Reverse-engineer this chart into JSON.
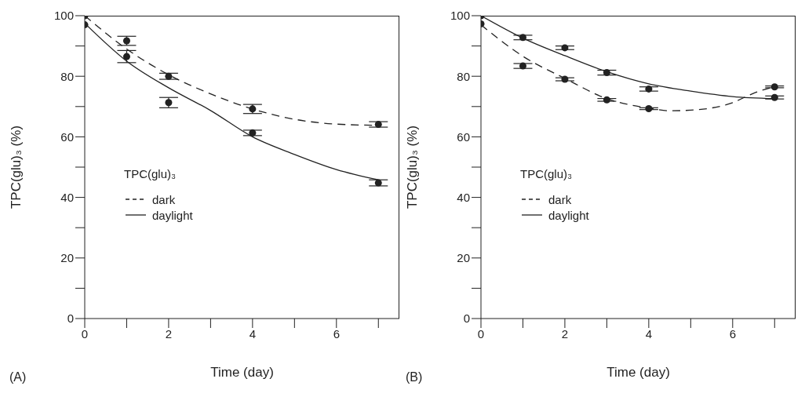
{
  "chart_data": [
    {
      "type": "line",
      "xlabel": "Time (day)",
      "ylabel": "TPC(glu)₃ (%)",
      "legend_title": "TPC(glu)₃",
      "legend": "left",
      "grid": false,
      "annotations": [
        "(A)"
      ],
      "xlim": [
        0,
        7.5
      ],
      "xticks": [
        0,
        {
          "value": 1,
          "label": null
        },
        2,
        {
          "value": 3,
          "label": null
        },
        4,
        {
          "value": 5,
          "label": null
        },
        6,
        {
          "value": 7,
          "label": null
        }
      ],
      "ylim": [
        0,
        100
      ],
      "yticks": [
        0,
        {
          "value": 10,
          "label": null
        },
        20,
        {
          "value": 30,
          "label": null
        },
        40,
        {
          "value": 50,
          "label": null
        },
        60,
        {
          "value": 70,
          "label": null
        },
        80,
        {
          "value": 90,
          "label": null
        },
        100
      ],
      "series": [
        {
          "name": "dark",
          "line_style": "dashed",
          "color": "#222222",
          "x": [
            0,
            1,
            2,
            3,
            4,
            5,
            6,
            7
          ],
          "values": [
            100,
            89,
            80.5,
            74.2,
            69.2,
            65.8,
            64.2,
            63.8
          ]
        },
        {
          "name": "daylight",
          "line_style": "solid",
          "color": "#222222",
          "x": [
            0,
            1,
            2,
            3,
            4,
            5,
            6,
            7
          ],
          "values": [
            97.5,
            85,
            76.2,
            68.7,
            60,
            54.2,
            49.2,
            45.8
          ]
        },
        {
          "type": "scatter",
          "marker": "circle",
          "color": "#222222",
          "x": [
            0,
            1,
            2,
            4,
            7
          ],
          "values": [
            100,
            91.7,
            80,
            69.2,
            64.1
          ],
          "errors": [
            null,
            1.5,
            1,
            1.5,
            0.9
          ]
        },
        {
          "type": "scatter",
          "marker": "circle",
          "color": "#222222",
          "x": [
            0,
            1,
            2,
            4,
            7
          ],
          "values": [
            97,
            86.5,
            71.3,
            61.3,
            44.8
          ],
          "errors": [
            null,
            2,
            1.7,
            0.9,
            1
          ]
        }
      ]
    },
    {
      "type": "line",
      "xlabel": "Time (day)",
      "ylabel": "TPC(glu)₃ (%)",
      "legend_title": "TPC(glu)₃",
      "legend": "left",
      "grid": false,
      "annotations": [
        "(B)"
      ],
      "xlim": [
        0,
        7.5
      ],
      "xticks": [
        0,
        {
          "value": 1,
          "label": null
        },
        2,
        {
          "value": 3,
          "label": null
        },
        4,
        {
          "value": 5,
          "label": null
        },
        6,
        {
          "value": 7,
          "label": null
        }
      ],
      "ylim": [
        0,
        100
      ],
      "yticks": [
        0,
        {
          "value": 10,
          "label": null
        },
        20,
        {
          "value": 30,
          "label": null
        },
        40,
        {
          "value": 50,
          "label": null
        },
        60,
        {
          "value": 70,
          "label": null
        },
        80,
        {
          "value": 90,
          "label": null
        },
        100
      ],
      "series": [
        {
          "name": "dark",
          "line_style": "dashed",
          "color": "#222222",
          "x": [
            0,
            1,
            2,
            3,
            4,
            4.5,
            5,
            6,
            6.5,
            7
          ],
          "values": [
            97,
            86.6,
            79.3,
            72.6,
            69.5,
            68.6,
            68.8,
            71.3,
            74.4,
            76.6
          ]
        },
        {
          "name": "daylight",
          "line_style": "solid",
          "color": "#222222",
          "x": [
            0,
            1,
            2,
            3,
            4,
            5,
            6,
            7
          ],
          "values": [
            100,
            92.6,
            86.8,
            81.5,
            77.5,
            75.1,
            73.3,
            72.6
          ]
        },
        {
          "type": "scatter",
          "marker": "circle",
          "color": "#222222",
          "x": [
            0,
            1,
            2,
            3,
            4,
            7
          ],
          "values": [
            97.3,
            83.4,
            79,
            72.2,
            69.3,
            76.5
          ],
          "errors": [
            null,
            0.8,
            0.5,
            0.45,
            0.3,
            0.3
          ]
        },
        {
          "type": "scatter",
          "marker": "circle",
          "color": "#222222",
          "x": [
            0,
            1,
            2,
            3,
            4,
            7
          ],
          "values": [
            100,
            92.8,
            89.4,
            81.2,
            75.8,
            73
          ],
          "errors": [
            null,
            0.75,
            0.6,
            0.8,
            0.7,
            0.5
          ]
        }
      ]
    }
  ]
}
